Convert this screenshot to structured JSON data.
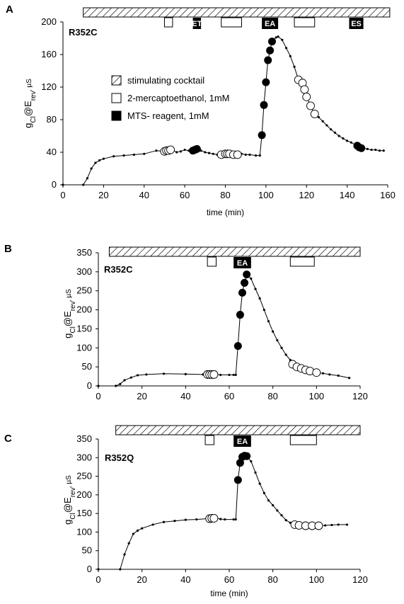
{
  "chart_data": [
    {
      "type": "line",
      "panel": "A",
      "mutant": "R352C",
      "xlabel": "time (min)",
      "ylabel_parts": {
        "g": "g",
        "sub1": "Cl",
        "at": "@E",
        "sub2": "rev",
        "unit": ", µS"
      },
      "xlim": [
        0,
        160
      ],
      "ylim": [
        0,
        200
      ],
      "xticks": [
        "0",
        "20",
        "40",
        "60",
        "80",
        "100",
        "120",
        "140",
        "160"
      ],
      "yticks": [
        "0",
        "40",
        "80",
        "120",
        "160",
        "200"
      ],
      "cocktail": [
        10,
        161
      ],
      "applications": [
        {
          "start": 50,
          "end": 54,
          "kind": "me"
        },
        {
          "start": 64,
          "end": 68,
          "kind": "mts",
          "label": "ET"
        },
        {
          "start": 78,
          "end": 88,
          "kind": "me"
        },
        {
          "start": 98,
          "end": 106,
          "kind": "mts",
          "label": "EA"
        },
        {
          "start": 114,
          "end": 124,
          "kind": "me"
        },
        {
          "start": 141,
          "end": 148,
          "kind": "mts",
          "label": "ES"
        }
      ],
      "legend": [
        {
          "kind": "cocktail",
          "label": "stimulating cocktail"
        },
        {
          "kind": "me",
          "label": "2-mercaptoethanol, 1mM"
        },
        {
          "kind": "mts",
          "label": "MTS- reagent, 1mM"
        }
      ],
      "line": [
        [
          0,
          0
        ],
        [
          10,
          0
        ],
        [
          12,
          8
        ],
        [
          14,
          20
        ],
        [
          16,
          27
        ],
        [
          18,
          30
        ],
        [
          20,
          32
        ],
        [
          25,
          35
        ],
        [
          30,
          36
        ],
        [
          35,
          37
        ],
        [
          40,
          38
        ],
        [
          46,
          42
        ],
        [
          50,
          41
        ],
        [
          52,
          42
        ],
        [
          54,
          43
        ],
        [
          56,
          40
        ],
        [
          58,
          41
        ],
        [
          60,
          43
        ],
        [
          62,
          42
        ],
        [
          64,
          42
        ],
        [
          66,
          44
        ],
        [
          68,
          42
        ],
        [
          70,
          40
        ],
        [
          72,
          39
        ],
        [
          74,
          38
        ],
        [
          76,
          37
        ],
        [
          78,
          37
        ],
        [
          80,
          38
        ],
        [
          82,
          38
        ],
        [
          84,
          37
        ],
        [
          86,
          37
        ],
        [
          88,
          38
        ],
        [
          90,
          37
        ],
        [
          92,
          37
        ],
        [
          95,
          36
        ],
        [
          97,
          36
        ],
        [
          98,
          61
        ],
        [
          99,
          98
        ],
        [
          100,
          126
        ],
        [
          101,
          153
        ],
        [
          102,
          165
        ],
        [
          103,
          176
        ],
        [
          105,
          181
        ],
        [
          106,
          182
        ],
        [
          108,
          178
        ],
        [
          110,
          168
        ],
        [
          112,
          158
        ],
        [
          114,
          145
        ],
        [
          116,
          129
        ],
        [
          118,
          125
        ],
        [
          119,
          117
        ],
        [
          120,
          108
        ],
        [
          122,
          97
        ],
        [
          124,
          87
        ],
        [
          126,
          83
        ],
        [
          128,
          78
        ],
        [
          130,
          73
        ],
        [
          132,
          68
        ],
        [
          134,
          64
        ],
        [
          136,
          60
        ],
        [
          138,
          57
        ],
        [
          140,
          54
        ],
        [
          142,
          52
        ],
        [
          144,
          49
        ],
        [
          146,
          47
        ],
        [
          148,
          45
        ],
        [
          150,
          44
        ],
        [
          152,
          43
        ],
        [
          154,
          43
        ],
        [
          156,
          42
        ],
        [
          158,
          42
        ]
      ],
      "open_markers": [
        [
          50,
          41
        ],
        [
          51,
          42
        ],
        [
          52,
          42
        ],
        [
          53,
          43
        ],
        [
          78,
          37
        ],
        [
          80,
          38
        ],
        [
          81,
          38
        ],
        [
          82,
          38
        ],
        [
          84,
          37
        ],
        [
          86,
          37
        ],
        [
          116,
          129
        ],
        [
          118,
          125
        ],
        [
          119,
          117
        ],
        [
          120,
          108
        ],
        [
          122,
          97
        ],
        [
          124,
          87
        ]
      ],
      "filled_markers": [
        [
          64,
          42
        ],
        [
          65,
          43
        ],
        [
          66,
          44
        ],
        [
          98,
          61
        ],
        [
          99,
          98
        ],
        [
          100,
          126
        ],
        [
          101,
          153
        ],
        [
          102,
          165
        ],
        [
          103,
          176
        ],
        [
          145,
          48
        ],
        [
          146,
          46
        ],
        [
          147,
          45
        ]
      ]
    },
    {
      "type": "line",
      "panel": "B",
      "mutant": "R352C",
      "xlabel": "",
      "ylabel_parts": {
        "g": "g",
        "sub1": "Cl",
        "at": "@E",
        "sub2": "rev",
        "unit": ", µS"
      },
      "xlim": [
        0,
        120
      ],
      "ylim": [
        0,
        350
      ],
      "xticks": [
        "0",
        "20",
        "40",
        "60",
        "80",
        "100",
        "120"
      ],
      "yticks": [
        "0",
        "50",
        "100",
        "150",
        "200",
        "250",
        "300",
        "350"
      ],
      "cocktail": [
        5,
        120
      ],
      "applications": [
        {
          "start": 50,
          "end": 54,
          "kind": "me"
        },
        {
          "start": 62,
          "end": 70,
          "kind": "mts",
          "label": "EA"
        },
        {
          "start": 88,
          "end": 99,
          "kind": "me"
        }
      ],
      "legend": [],
      "line": [
        [
          0,
          0
        ],
        [
          8,
          0
        ],
        [
          10,
          5
        ],
        [
          12,
          15
        ],
        [
          15,
          22
        ],
        [
          18,
          28
        ],
        [
          22,
          30
        ],
        [
          30,
          32
        ],
        [
          40,
          31
        ],
        [
          48,
          30
        ],
        [
          50,
          30
        ],
        [
          52,
          30
        ],
        [
          54,
          30
        ],
        [
          56,
          29
        ],
        [
          60,
          29
        ],
        [
          62,
          29
        ],
        [
          63,
          29
        ],
        [
          64,
          105
        ],
        [
          65,
          187
        ],
        [
          66,
          245
        ],
        [
          67,
          271
        ],
        [
          68,
          293
        ],
        [
          70,
          282
        ],
        [
          72,
          255
        ],
        [
          74,
          230
        ],
        [
          76,
          200
        ],
        [
          78,
          170
        ],
        [
          80,
          143
        ],
        [
          82,
          120
        ],
        [
          84,
          100
        ],
        [
          86,
          82
        ],
        [
          88,
          68
        ],
        [
          90,
          56
        ],
        [
          92,
          50
        ],
        [
          94,
          45
        ],
        [
          96,
          41
        ],
        [
          98,
          38
        ],
        [
          100,
          35
        ],
        [
          103,
          33
        ],
        [
          106,
          30
        ],
        [
          110,
          27
        ],
        [
          115,
          21
        ]
      ],
      "open_markers": [
        [
          50,
          30
        ],
        [
          51,
          30
        ],
        [
          52,
          30
        ],
        [
          53,
          30
        ],
        [
          89,
          57
        ],
        [
          91,
          50
        ],
        [
          93,
          46
        ],
        [
          95,
          42
        ],
        [
          97,
          39
        ],
        [
          100,
          35
        ]
      ],
      "filled_markers": [
        [
          64,
          105
        ],
        [
          65,
          187
        ],
        [
          66,
          245
        ],
        [
          67,
          271
        ],
        [
          68,
          293
        ]
      ]
    },
    {
      "type": "line",
      "panel": "C",
      "mutant": "R352Q",
      "xlabel": "time (min)",
      "ylabel_parts": {
        "g": "g",
        "sub1": "Cl",
        "at": "@E",
        "sub2": "rev",
        "unit": ", µS"
      },
      "xlim": [
        0,
        120
      ],
      "ylim": [
        0,
        350
      ],
      "xticks": [
        "0",
        "20",
        "40",
        "60",
        "80",
        "100",
        "120"
      ],
      "yticks": [
        "0",
        "50",
        "100",
        "150",
        "200",
        "250",
        "300",
        "350"
      ],
      "cocktail": [
        8,
        120
      ],
      "applications": [
        {
          "start": 49,
          "end": 53,
          "kind": "me"
        },
        {
          "start": 62,
          "end": 70,
          "kind": "mts",
          "label": "EA"
        },
        {
          "start": 88,
          "end": 100,
          "kind": "me"
        }
      ],
      "legend": [],
      "line": [
        [
          0,
          0
        ],
        [
          10,
          0
        ],
        [
          12,
          40
        ],
        [
          14,
          70
        ],
        [
          16,
          95
        ],
        [
          18,
          104
        ],
        [
          20,
          110
        ],
        [
          25,
          120
        ],
        [
          30,
          127
        ],
        [
          35,
          130
        ],
        [
          40,
          133
        ],
        [
          45,
          134
        ],
        [
          50,
          136
        ],
        [
          52,
          137
        ],
        [
          54,
          137
        ],
        [
          56,
          135
        ],
        [
          58,
          134
        ],
        [
          62,
          134
        ],
        [
          63,
          134
        ],
        [
          64,
          240
        ],
        [
          65,
          286
        ],
        [
          66,
          302
        ],
        [
          67,
          305
        ],
        [
          68,
          304
        ],
        [
          70,
          290
        ],
        [
          72,
          260
        ],
        [
          74,
          230
        ],
        [
          76,
          205
        ],
        [
          78,
          185
        ],
        [
          80,
          172
        ],
        [
          82,
          158
        ],
        [
          84,
          145
        ],
        [
          86,
          132
        ],
        [
          88,
          125
        ],
        [
          90,
          120
        ],
        [
          92,
          118
        ],
        [
          95,
          117
        ],
        [
          98,
          117
        ],
        [
          101,
          117
        ],
        [
          104,
          118
        ],
        [
          107,
          119
        ],
        [
          110,
          120
        ],
        [
          114,
          120
        ]
      ],
      "open_markers": [
        [
          51,
          136
        ],
        [
          52,
          137
        ],
        [
          53,
          137
        ],
        [
          90,
          120
        ],
        [
          92,
          118
        ],
        [
          95,
          117
        ],
        [
          98,
          117
        ],
        [
          101,
          117
        ]
      ],
      "filled_markers": [
        [
          64,
          240
        ],
        [
          65,
          286
        ],
        [
          66,
          302
        ],
        [
          67,
          305
        ],
        [
          68,
          304
        ]
      ]
    }
  ]
}
